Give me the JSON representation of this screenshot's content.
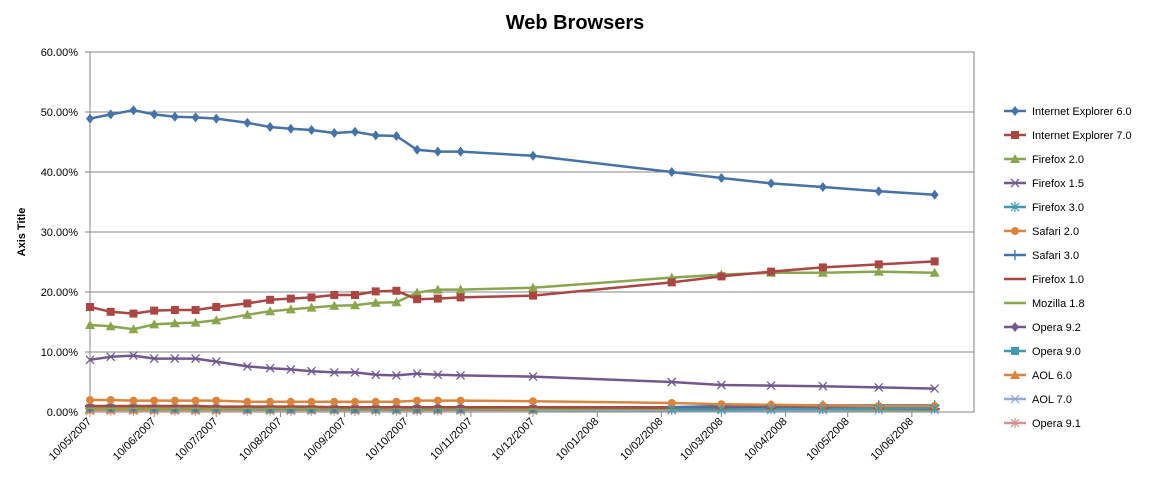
{
  "chart_data": {
    "type": "line",
    "title": "Web Browsers",
    "xlabel": "",
    "ylabel": "Axis Title",
    "ylim": [
      0,
      60
    ],
    "y_ticks": [
      "0.00%",
      "10.00%",
      "20.00%",
      "30.00%",
      "40.00%",
      "50.00%",
      "60.00%"
    ],
    "x_range": [
      "2007-05-10",
      "2008-07-10"
    ],
    "x_tick_labels": [
      {
        "date": "2007-05-10",
        "label": "10/05/2007"
      },
      {
        "date": "2007-06-10",
        "label": "10/06/2007"
      },
      {
        "date": "2007-07-10",
        "label": "10/07/2007"
      },
      {
        "date": "2007-08-10",
        "label": "10/08/2007"
      },
      {
        "date": "2007-09-10",
        "label": "10/09/2007"
      },
      {
        "date": "2007-10-10",
        "label": "10/10/2007"
      },
      {
        "date": "2007-11-10",
        "label": "10/11/2007"
      },
      {
        "date": "2007-12-10",
        "label": "10/12/2007"
      },
      {
        "date": "2008-01-10",
        "label": "10/01/2008"
      },
      {
        "date": "2008-02-10",
        "label": "10/02/2008"
      },
      {
        "date": "2008-03-10",
        "label": "10/03/2008"
      },
      {
        "date": "2008-04-10",
        "label": "10/04/2008"
      },
      {
        "date": "2008-05-10",
        "label": "10/05/2008"
      },
      {
        "date": "2008-06-10",
        "label": "10/06/2008"
      }
    ],
    "grid": "horizontal",
    "legend_position": "right",
    "x": [
      "2007-05-10",
      "2007-05-20",
      "2007-05-31",
      "2007-06-10",
      "2007-06-20",
      "2007-06-30",
      "2007-07-10",
      "2007-07-25",
      "2007-08-05",
      "2007-08-15",
      "2007-08-25",
      "2007-09-05",
      "2007-09-15",
      "2007-09-25",
      "2007-10-05",
      "2007-10-15",
      "2007-10-25",
      "2007-11-05",
      "2007-11-15",
      "2007-12-10",
      "2008-02-15",
      "2008-03-10",
      "2008-04-03",
      "2008-04-28",
      "2008-05-25",
      "2008-06-21"
    ],
    "series": [
      {
        "name": "Internet Explorer 6.0",
        "color": "#4572A7",
        "marker": "diamond",
        "values": [
          48.9,
          49.6,
          50.3,
          49.6,
          49.2,
          49.1,
          48.9,
          48.2,
          47.5,
          47.2,
          47.0,
          46.5,
          46.7,
          46.1,
          46.0,
          43.7,
          43.4,
          43.4,
          null,
          42.7,
          40.0,
          39.0,
          38.1,
          37.5,
          36.8,
          36.2
        ]
      },
      {
        "name": "Internet Explorer 7.0",
        "color": "#AA4643",
        "marker": "square",
        "values": [
          17.5,
          16.7,
          16.4,
          16.9,
          17.0,
          17.0,
          17.5,
          18.1,
          18.7,
          18.9,
          19.1,
          19.5,
          19.5,
          20.1,
          20.2,
          18.8,
          18.9,
          19.1,
          null,
          19.4,
          21.6,
          22.6,
          23.4,
          24.1,
          24.6,
          25.1
        ]
      },
      {
        "name": "Firefox 2.0",
        "color": "#89A54E",
        "marker": "triangle",
        "values": [
          14.5,
          14.3,
          13.8,
          14.6,
          14.8,
          14.9,
          15.3,
          16.2,
          16.8,
          17.1,
          17.4,
          17.7,
          17.8,
          18.2,
          18.3,
          19.9,
          20.4,
          20.4,
          null,
          20.7,
          22.4,
          22.9,
          23.2,
          23.2,
          23.4,
          23.2
        ]
      },
      {
        "name": "Firefox 1.5",
        "color": "#71588F",
        "marker": "x",
        "values": [
          8.7,
          9.2,
          9.4,
          8.9,
          8.9,
          8.9,
          8.4,
          7.6,
          7.3,
          7.1,
          6.8,
          6.6,
          6.6,
          6.2,
          6.1,
          6.4,
          6.2,
          6.1,
          null,
          5.9,
          5.0,
          4.5,
          4.4,
          4.3,
          4.1,
          3.9
        ]
      },
      {
        "name": "Firefox 3.0",
        "color": "#4198AF",
        "marker": "star",
        "values": [
          null,
          null,
          null,
          null,
          null,
          null,
          null,
          null,
          null,
          null,
          null,
          null,
          null,
          null,
          null,
          null,
          null,
          null,
          null,
          null,
          0.4,
          0.4,
          0.5,
          0.5,
          0.6,
          0.6
        ]
      },
      {
        "name": "Safari 2.0",
        "color": "#DB843D",
        "marker": "circle",
        "values": [
          2.0,
          2.0,
          1.9,
          1.9,
          1.9,
          1.9,
          1.9,
          1.7,
          1.7,
          1.7,
          1.7,
          1.7,
          1.7,
          1.7,
          1.7,
          1.9,
          1.9,
          1.9,
          null,
          1.8,
          1.5,
          1.3,
          1.2,
          1.1,
          1.0,
          1.0
        ]
      },
      {
        "name": "Safari 3.0",
        "color": "#4572A7",
        "marker": "plus",
        "values": [
          null,
          null,
          null,
          null,
          null,
          null,
          null,
          null,
          null,
          null,
          null,
          null,
          null,
          null,
          null,
          null,
          null,
          null,
          null,
          null,
          0.8,
          1.0,
          1.1,
          1.1,
          1.1,
          1.1
        ]
      },
      {
        "name": "Firefox 1.0",
        "color": "#AA4643",
        "marker": "dash",
        "values": [
          1.0,
          1.0,
          1.0,
          1.0,
          1.0,
          1.0,
          0.9,
          0.9,
          0.9,
          0.9,
          0.9,
          0.8,
          0.8,
          0.8,
          0.8,
          0.8,
          0.8,
          0.8,
          null,
          0.8,
          0.7,
          0.6,
          0.6,
          0.6,
          0.6,
          0.5
        ]
      },
      {
        "name": "Mozilla 1.8",
        "color": "#89A54E",
        "marker": "dash",
        "values": [
          0.6,
          0.6,
          0.6,
          0.6,
          0.6,
          0.6,
          0.6,
          0.6,
          0.6,
          0.6,
          0.6,
          0.6,
          0.6,
          0.6,
          0.6,
          0.6,
          0.6,
          0.6,
          null,
          0.5,
          0.5,
          0.5,
          0.5,
          0.5,
          0.4,
          0.4
        ]
      },
      {
        "name": "Opera 9.2",
        "color": "#71588F",
        "marker": "diamond",
        "values": [
          0.8,
          0.8,
          0.8,
          0.8,
          0.8,
          0.8,
          0.8,
          0.8,
          0.8,
          0.8,
          0.8,
          0.8,
          0.8,
          0.8,
          0.8,
          0.8,
          0.8,
          0.8,
          null,
          0.8,
          0.8,
          0.9,
          0.9,
          0.9,
          0.9,
          0.9
        ]
      },
      {
        "name": "Opera 9.0",
        "color": "#4198AF",
        "marker": "square",
        "values": [
          0.7,
          0.7,
          0.7,
          0.6,
          0.6,
          0.6,
          0.6,
          0.5,
          0.5,
          0.5,
          0.5,
          0.5,
          0.5,
          0.5,
          0.5,
          0.5,
          0.5,
          0.5,
          null,
          0.5,
          null,
          null,
          null,
          null,
          null,
          null
        ]
      },
      {
        "name": "AOL 6.0",
        "color": "#DB843D",
        "marker": "triangle",
        "values": [
          0.4,
          0.4,
          0.4,
          0.4,
          0.4,
          0.4,
          0.4,
          0.4,
          0.4,
          0.4,
          0.4,
          0.4,
          0.4,
          0.4,
          0.4,
          0.4,
          0.4,
          0.4,
          null,
          0.4,
          null,
          null,
          null,
          null,
          null,
          null
        ]
      },
      {
        "name": "AOL 7.0",
        "color": "#93A9CF",
        "marker": "x",
        "values": [
          0.3,
          0.3,
          0.3,
          0.3,
          0.3,
          0.3,
          0.3,
          0.3,
          0.3,
          0.3,
          0.3,
          0.3,
          0.3,
          0.3,
          0.3,
          0.3,
          0.3,
          0.3,
          null,
          0.3,
          0.3,
          0.3,
          0.3,
          0.3,
          0.3,
          0.3
        ]
      },
      {
        "name": "Opera 9.1",
        "color": "#D19392",
        "marker": "star",
        "values": [
          0.2,
          0.2,
          0.2,
          0.2,
          0.2,
          0.2,
          0.2,
          0.2,
          0.2,
          0.2,
          0.2,
          0.2,
          0.2,
          0.2,
          0.2,
          0.2,
          0.2,
          0.2,
          null,
          0.2,
          null,
          null,
          null,
          null,
          null,
          null
        ]
      }
    ]
  }
}
